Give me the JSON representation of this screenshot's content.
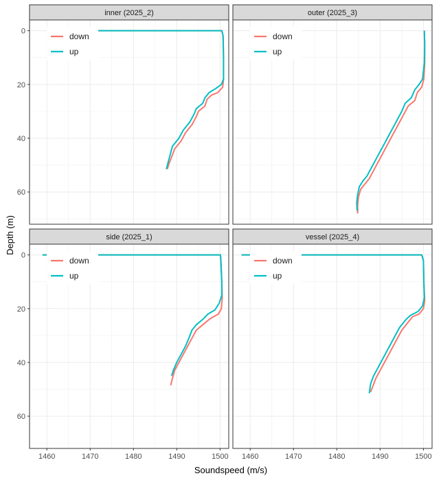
{
  "chart_data": {
    "type": "line",
    "xlabel": "Soundspeed (m/s)",
    "ylabel": "Depth (m)",
    "xlim": [
      1456,
      1502
    ],
    "ylim": [
      -4,
      72
    ],
    "y_reversed": true,
    "x_ticks": [
      1460,
      1470,
      1480,
      1490,
      1500
    ],
    "y_ticks": [
      0,
      20,
      40,
      60
    ],
    "grid": true,
    "legend_position": "top-left inside each panel",
    "colors": {
      "down": "#F8766D",
      "up": "#00BFC4"
    },
    "panels": [
      {
        "strip": "inner  (2025_2)",
        "series": [
          {
            "name": "down",
            "points": [
              [
                1460.5,
                0
              ],
              [
                1500.4,
                0
              ],
              [
                1500.7,
                2
              ],
              [
                1500.8,
                10
              ],
              [
                1500.8,
                18
              ],
              [
                1500.6,
                21
              ],
              [
                1499.5,
                23
              ],
              [
                1498.0,
                24
              ],
              [
                1497.0,
                25.5
              ],
              [
                1496.5,
                28
              ],
              [
                1495.0,
                30
              ],
              [
                1494.5,
                32
              ],
              [
                1493.5,
                35
              ],
              [
                1492.0,
                38
              ],
              [
                1491.0,
                41
              ],
              [
                1489.5,
                44
              ],
              [
                1488.8,
                47
              ],
              [
                1488.2,
                49.5
              ],
              [
                1487.8,
                51.5
              ]
            ]
          },
          {
            "name": "up",
            "points": [
              [
                1460.5,
                0
              ],
              [
                1500.4,
                0
              ],
              [
                1500.7,
                2
              ],
              [
                1500.8,
                10
              ],
              [
                1500.8,
                18
              ],
              [
                1500.3,
                20
              ],
              [
                1499.0,
                21.5
              ],
              [
                1497.5,
                23
              ],
              [
                1496.5,
                25
              ],
              [
                1496.0,
                27
              ],
              [
                1494.5,
                29
              ],
              [
                1494.0,
                31
              ],
              [
                1493.0,
                34
              ],
              [
                1491.5,
                37
              ],
              [
                1490.5,
                40
              ],
              [
                1489.0,
                43
              ],
              [
                1488.5,
                46
              ],
              [
                1488.0,
                49
              ],
              [
                1487.6,
                51.5
              ]
            ]
          }
        ]
      },
      {
        "strip": "outer  (2025_3)",
        "series": [
          {
            "name": "down",
            "points": [
              [
                1500.2,
                0
              ],
              [
                1500.3,
                5
              ],
              [
                1500.3,
                12
              ],
              [
                1500.1,
                18
              ],
              [
                1499.6,
                21
              ],
              [
                1498.6,
                23
              ],
              [
                1498.0,
                26
              ],
              [
                1496.5,
                28
              ],
              [
                1495.5,
                31
              ],
              [
                1494.5,
                34
              ],
              [
                1493.5,
                37
              ],
              [
                1492.5,
                40
              ],
              [
                1491.5,
                43
              ],
              [
                1490.5,
                46
              ],
              [
                1489.5,
                49
              ],
              [
                1488.5,
                52
              ],
              [
                1487.5,
                55
              ],
              [
                1486.5,
                57
              ],
              [
                1485.5,
                59
              ],
              [
                1485.0,
                62
              ],
              [
                1484.8,
                65
              ],
              [
                1484.8,
                68
              ]
            ]
          },
          {
            "name": "up",
            "points": [
              [
                1500.2,
                0
              ],
              [
                1500.3,
                5
              ],
              [
                1500.2,
                12
              ],
              [
                1499.8,
                18
              ],
              [
                1499.0,
                20
              ],
              [
                1498.0,
                22
              ],
              [
                1497.2,
                25
              ],
              [
                1495.8,
                27
              ],
              [
                1495.0,
                30
              ],
              [
                1494.0,
                33
              ],
              [
                1493.0,
                36
              ],
              [
                1492.0,
                39
              ],
              [
                1491.0,
                42
              ],
              [
                1490.0,
                45
              ],
              [
                1489.0,
                48
              ],
              [
                1488.0,
                51
              ],
              [
                1487.0,
                54
              ],
              [
                1486.0,
                56
              ],
              [
                1485.2,
                58
              ],
              [
                1484.8,
                61
              ],
              [
                1484.6,
                64
              ],
              [
                1484.7,
                67
              ]
            ]
          }
        ]
      },
      {
        "strip": "side  (2025_1)",
        "series": [
          {
            "name": "down",
            "points": [
              [
                1459.0,
                0
              ],
              [
                1500.1,
                0
              ],
              [
                1500.2,
                3
              ],
              [
                1500.4,
                10
              ],
              [
                1500.5,
                16
              ],
              [
                1500.3,
                20
              ],
              [
                1499.6,
                22
              ],
              [
                1498.5,
                23
              ],
              [
                1497.5,
                24
              ],
              [
                1496.0,
                26
              ],
              [
                1494.5,
                28
              ],
              [
                1493.5,
                31
              ],
              [
                1492.5,
                34
              ],
              [
                1491.5,
                37
              ],
              [
                1490.5,
                40
              ],
              [
                1489.5,
                43
              ],
              [
                1489.0,
                46
              ],
              [
                1488.6,
                48.5
              ]
            ]
          },
          {
            "name": "up",
            "points": [
              [
                1459.0,
                0
              ],
              [
                1500.1,
                0
              ],
              [
                1500.2,
                3
              ],
              [
                1500.4,
                10
              ],
              [
                1500.4,
                15
              ],
              [
                1499.8,
                18
              ],
              [
                1498.8,
                20.5
              ],
              [
                1497.2,
                22
              ],
              [
                1496.0,
                24
              ],
              [
                1494.5,
                26
              ],
              [
                1493.5,
                28
              ],
              [
                1492.8,
                31
              ],
              [
                1492.0,
                34
              ],
              [
                1491.0,
                37
              ],
              [
                1490.0,
                40
              ],
              [
                1489.2,
                43
              ],
              [
                1488.8,
                45
              ]
            ]
          }
        ]
      },
      {
        "strip": "vessel (2025_4)",
        "series": [
          {
            "name": "down",
            "points": [
              [
                1458.0,
                0
              ],
              [
                1499.6,
                0
              ],
              [
                1500.0,
                2
              ],
              [
                1500.1,
                10
              ],
              [
                1500.3,
                17
              ],
              [
                1500.0,
                20
              ],
              [
                1499.0,
                22
              ],
              [
                1497.5,
                23
              ],
              [
                1496.5,
                25
              ],
              [
                1495.0,
                28
              ],
              [
                1494.0,
                31
              ],
              [
                1493.0,
                34
              ],
              [
                1492.0,
                37
              ],
              [
                1491.0,
                40
              ],
              [
                1490.0,
                43
              ],
              [
                1489.0,
                46
              ],
              [
                1488.3,
                49
              ],
              [
                1487.8,
                51
              ]
            ]
          },
          {
            "name": "up",
            "points": [
              [
                1458.0,
                0
              ],
              [
                1499.6,
                0
              ],
              [
                1500.0,
                2
              ],
              [
                1500.1,
                10
              ],
              [
                1500.2,
                16
              ],
              [
                1499.8,
                19
              ],
              [
                1498.8,
                21
              ],
              [
                1497.0,
                22.5
              ],
              [
                1496.0,
                24
              ],
              [
                1494.5,
                27
              ],
              [
                1493.5,
                30
              ],
              [
                1492.5,
                33
              ],
              [
                1491.5,
                36
              ],
              [
                1490.5,
                39
              ],
              [
                1489.5,
                42
              ],
              [
                1488.5,
                45
              ],
              [
                1487.8,
                48
              ],
              [
                1487.5,
                51.5
              ]
            ]
          }
        ]
      }
    ]
  }
}
